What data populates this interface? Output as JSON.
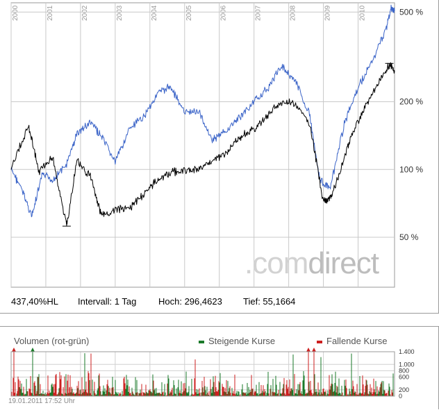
{
  "chart_data": [
    {
      "type": "line",
      "scale": "log",
      "x_tick_labels": [
        "2000",
        "2001",
        "2002",
        "2003",
        "2004",
        "2005",
        "2006",
        "2007",
        "2008",
        "2009",
        "2010"
      ],
      "y_tick_labels": [
        "500 %",
        "200 %",
        "100 %",
        "50 %"
      ],
      "y_ticks": [
        500,
        200,
        100,
        50
      ],
      "ylim": [
        30,
        550
      ],
      "series": [
        {
          "color": "#000000",
          "points": [
            [
              2000.0,
              100
            ],
            [
              2000.5,
              158
            ],
            [
              2000.8,
              98
            ],
            [
              2001.2,
              113
            ],
            [
              2001.6,
              56
            ],
            [
              2001.9,
              110
            ],
            [
              2002.3,
              92
            ],
            [
              2002.6,
              62
            ],
            [
              2003.0,
              66
            ],
            [
              2003.4,
              67
            ],
            [
              2003.8,
              77
            ],
            [
              2004.2,
              90
            ],
            [
              2004.6,
              97
            ],
            [
              2005.0,
              99
            ],
            [
              2005.4,
              100
            ],
            [
              2005.8,
              110
            ],
            [
              2006.2,
              118
            ],
            [
              2006.6,
              140
            ],
            [
              2007.0,
              150
            ],
            [
              2007.4,
              175
            ],
            [
              2007.8,
              200
            ],
            [
              2008.2,
              195
            ],
            [
              2008.6,
              160
            ],
            [
              2009.0,
              72
            ],
            [
              2009.2,
              74
            ],
            [
              2009.5,
              100
            ],
            [
              2009.8,
              140
            ],
            [
              2010.2,
              190
            ],
            [
              2010.6,
              245
            ],
            [
              2010.9,
              296
            ],
            [
              2011.05,
              270
            ]
          ]
        },
        {
          "color": "#3b64c8",
          "points": [
            [
              2000.0,
              100
            ],
            [
              2000.3,
              82
            ],
            [
              2000.6,
              62
            ],
            [
              2000.9,
              95
            ],
            [
              2001.2,
              90
            ],
            [
              2001.6,
              105
            ],
            [
              2001.9,
              145
            ],
            [
              2002.3,
              162
            ],
            [
              2002.6,
              140
            ],
            [
              2003.0,
              108
            ],
            [
              2003.4,
              150
            ],
            [
              2003.8,
              170
            ],
            [
              2004.2,
              215
            ],
            [
              2004.6,
              235
            ],
            [
              2005.0,
              178
            ],
            [
              2005.4,
              182
            ],
            [
              2005.8,
              135
            ],
            [
              2006.2,
              148
            ],
            [
              2006.6,
              172
            ],
            [
              2007.0,
              200
            ],
            [
              2007.4,
              230
            ],
            [
              2007.8,
              290
            ],
            [
              2008.2,
              245
            ],
            [
              2008.6,
              175
            ],
            [
              2008.9,
              90
            ],
            [
              2009.2,
              82
            ],
            [
              2009.6,
              160
            ],
            [
              2010.0,
              230
            ],
            [
              2010.4,
              300
            ],
            [
              2010.8,
              420
            ],
            [
              2010.95,
              520
            ],
            [
              2011.05,
              505
            ]
          ]
        }
      ]
    },
    {
      "type": "bar",
      "title": "Volumen (rot-grün)",
      "y_tick_labels": [
        "1.400",
        "1.000",
        "800",
        "600",
        "200",
        "0"
      ],
      "y_ticks": [
        1400,
        1000,
        800,
        600,
        200,
        0
      ],
      "ylim": [
        0,
        1400
      ],
      "series": [
        {
          "name": "Steigende Kurse",
          "color": "#1a7a2a"
        },
        {
          "name": "Fallende Kurse",
          "color": "#cc1f1f"
        }
      ]
    }
  ],
  "stats": {
    "hl": "437,40%HL",
    "interval": "Intervall: 1 Tag",
    "high": "Hoch: 296,4623",
    "low": "Tief: 55,1664"
  },
  "watermark": {
    "part1": ".com",
    "part2": "direct"
  },
  "timestamp": "19.01.2011 17:52 Uhr"
}
